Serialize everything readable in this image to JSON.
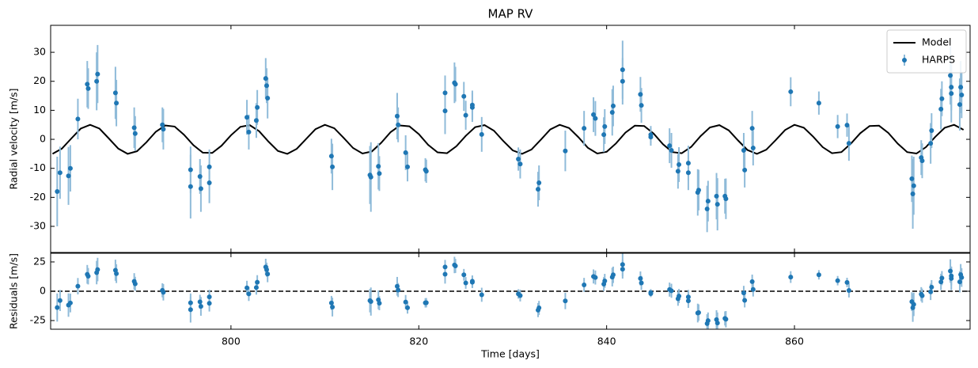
{
  "chart_data": [
    {
      "type": "errorbar",
      "title": "MAP RV",
      "ylabel": "Radial velocity [m/s]",
      "xlim": [
        780.8,
        878.7
      ],
      "ylim": [
        -39,
        39.3
      ],
      "xticks": [
        800,
        820,
        840,
        860
      ],
      "show_xtick_labels": false,
      "yticks": [
        -30,
        -20,
        -10,
        0,
        10,
        20,
        30
      ],
      "legend": "upper right",
      "series": [
        {
          "name": "Model",
          "color": "#000000",
          "x": [
            781,
            782,
            783,
            784,
            785,
            786,
            787,
            788,
            789,
            790,
            791,
            792,
            793,
            794,
            795,
            796,
            797,
            798,
            799,
            800,
            801,
            802,
            803,
            804,
            805,
            806,
            807,
            808,
            809,
            810,
            811,
            812,
            813,
            814,
            815,
            816,
            817,
            818,
            819,
            820,
            821,
            822,
            823,
            824,
            825,
            826,
            827,
            828,
            829,
            830,
            831,
            832,
            833,
            834,
            835,
            836,
            837,
            838,
            839,
            840,
            841,
            842,
            843,
            844,
            845,
            846,
            847,
            848,
            849,
            850,
            851,
            852,
            853,
            854,
            855,
            856,
            857,
            858,
            859,
            860,
            861,
            862,
            863,
            864,
            865,
            866,
            867,
            868,
            869,
            870,
            871,
            872,
            873,
            874,
            875,
            876,
            877,
            878
          ],
          "values": [
            -5.0,
            -3.2,
            0.3,
            3.7,
            5,
            3.7,
            0.3,
            -3.2,
            -5.0,
            -4.1,
            -1.0,
            2.6,
            4.8,
            4.4,
            1.6,
            -2.0,
            -4.6,
            -4.7,
            -2.2,
            1.4,
            4.3,
            4.9,
            2.8,
            -0.8,
            -4.0,
            -5.0,
            -3.3,
            0.1,
            3.5,
            5.0,
            3.8,
            0.5,
            -3.0,
            -4.9,
            -4.2,
            -1.2,
            2.5,
            4.8,
            4.5,
            1.8,
            -1.9,
            -4.5,
            -4.8,
            -2.4,
            1.2,
            4.2,
            4.9,
            3.0,
            -0.6,
            -3.8,
            -5.0,
            -3.5,
            -0.1,
            3.4,
            5.0,
            3.9,
            0.7,
            -2.9,
            -4.9,
            -4.3,
            -1.4,
            2.3,
            4.7,
            4.6,
            2.0,
            -1.7,
            -4.4,
            -4.8,
            -2.6,
            1.1,
            4.1,
            4.9,
            3.1,
            -0.4,
            -3.7,
            -5.0,
            -3.6,
            -0.3,
            3.2,
            5.0,
            4.0,
            0.9,
            -2.7,
            -4.8,
            -4.4,
            -1.5,
            2.1,
            4.6,
            4.7,
            2.2,
            -1.5,
            -4.4,
            -4.9,
            -2.7,
            0.9,
            4.0,
            5.0,
            3.3
          ]
        },
        {
          "name": "HARPS",
          "color": "#1f77b4",
          "error_color": "#8fbbd9",
          "x": [
            781.5,
            781.8,
            782.7,
            782.9,
            783.7,
            784.7,
            784.8,
            785.7,
            785.8,
            787.7,
            787.8,
            789.7,
            789.8,
            792.7,
            792.8,
            795.7,
            795.7,
            796.7,
            796.8,
            797.7,
            797.7,
            801.7,
            801.9,
            802.7,
            802.8,
            803.7,
            803.8,
            803.9,
            810.7,
            810.8,
            814.8,
            814.9,
            815.7,
            815.8,
            817.7,
            817.8,
            818.6,
            818.8,
            820.7,
            820.8,
            822.8,
            822.8,
            823.8,
            823.9,
            824.8,
            825.0,
            825.7,
            825.7,
            826.7,
            830.6,
            830.8,
            832.7,
            832.8,
            835.6,
            837.6,
            838.6,
            838.8,
            839.7,
            839.8,
            840.6,
            840.7,
            841.7,
            841.7,
            843.6,
            843.7,
            844.7,
            844.7,
            846.7,
            846.9,
            847.6,
            847.7,
            848.7,
            848.7,
            849.7,
            849.8,
            850.7,
            850.8,
            851.7,
            851.8,
            852.6,
            852.7,
            854.6,
            854.7,
            855.5,
            855.6,
            859.6,
            862.6,
            864.6,
            865.6,
            865.8,
            872.5,
            872.6,
            872.7,
            873.5,
            873.6,
            874.5,
            874.6,
            875.6,
            875.7,
            876.6,
            876.7,
            876.7,
            877.6,
            877.7,
            877.8
          ],
          "values": [
            -18,
            -11.5,
            -12.6,
            -10,
            7,
            19,
            17.5,
            20,
            22.5,
            16,
            12.5,
            4,
            2,
            5,
            3.5,
            -10.5,
            -16.3,
            -12.8,
            -17,
            -9.5,
            -15,
            7.6,
            2.5,
            6.5,
            11,
            21,
            18.5,
            14.2,
            -5.8,
            -9.5,
            -12.3,
            -13,
            -9.3,
            -11.8,
            8,
            5,
            -4.6,
            -9.5,
            -10.5,
            -11,
            16,
            9.8,
            19.5,
            19,
            14.8,
            8.3,
            11,
            11.8,
            1.7,
            -6.8,
            -8.5,
            -17.2,
            -15,
            -4,
            3.8,
            8.5,
            7.2,
            1.6,
            4.4,
            9.3,
            11.5,
            24,
            20,
            15.5,
            11.7,
            1.6,
            0.8,
            -2.2,
            -3.8,
            -11,
            -8.7,
            -8.2,
            -11.5,
            -18.3,
            -17.5,
            -24,
            -21.3,
            -19.6,
            -22.4,
            -19.6,
            -20.5,
            -3.8,
            -10.6,
            3.8,
            -3,
            16.4,
            12.5,
            4.4,
            4.9,
            -1.4,
            -13.6,
            -18.8,
            -16,
            -6.3,
            -7.4,
            -1.4,
            3,
            10.4,
            14,
            22,
            15.8,
            18,
            12,
            18,
            15.3
          ],
          "errors": [
            12,
            9,
            10,
            8,
            7,
            8,
            7,
            10,
            10,
            9,
            8,
            7,
            6,
            6,
            7,
            8,
            11,
            6,
            8,
            6,
            7,
            6,
            6,
            6,
            6,
            7,
            6,
            7,
            6,
            8,
            10,
            12,
            8,
            6,
            8,
            6,
            6,
            5,
            4,
            4,
            6,
            8,
            7,
            6,
            5,
            5,
            5,
            5,
            6,
            4,
            5,
            6,
            6,
            7,
            6,
            6,
            6,
            6,
            6,
            8,
            7,
            10,
            8,
            6,
            6,
            3,
            3,
            6,
            6,
            6,
            6,
            6,
            6,
            8,
            7,
            8,
            7,
            8,
            9,
            6,
            7,
            6,
            6,
            6,
            6,
            5,
            4,
            4,
            4,
            6,
            8,
            12,
            10,
            6,
            6,
            7,
            6,
            7,
            6,
            10,
            10,
            8,
            9,
            9,
            8
          ]
        }
      ]
    },
    {
      "type": "errorbar",
      "ylabel": "Residuals [m/s]",
      "xlabel": "Time [days]",
      "xlim": [
        780.8,
        878.7
      ],
      "ylim": [
        -32.4,
        32.4
      ],
      "xticks": [
        800,
        820,
        840,
        860
      ],
      "show_xtick_labels": true,
      "yticks": [
        -25,
        0,
        25
      ],
      "hline": 0,
      "series": [
        {
          "color": "#1f77b4",
          "error_color": "#8fbbd9",
          "x": [
            781.5,
            781.8,
            782.7,
            782.9,
            783.7,
            784.7,
            784.8,
            785.7,
            785.8,
            787.7,
            787.8,
            789.7,
            789.8,
            792.7,
            792.8,
            795.7,
            795.7,
            796.7,
            796.8,
            797.7,
            797.7,
            801.7,
            801.9,
            802.7,
            802.8,
            803.7,
            803.8,
            803.9,
            810.7,
            810.8,
            814.8,
            814.9,
            815.7,
            815.8,
            817.7,
            817.8,
            818.6,
            818.8,
            820.7,
            820.8,
            822.8,
            822.8,
            823.8,
            823.9,
            824.8,
            825.0,
            825.7,
            825.7,
            826.7,
            830.6,
            830.8,
            832.7,
            832.8,
            835.6,
            837.6,
            838.6,
            838.8,
            839.7,
            839.8,
            840.6,
            840.7,
            841.7,
            841.7,
            843.6,
            843.7,
            844.7,
            844.7,
            846.7,
            846.9,
            847.6,
            847.7,
            848.7,
            848.7,
            849.7,
            849.8,
            850.7,
            850.8,
            851.7,
            851.8,
            852.6,
            852.7,
            854.6,
            854.7,
            855.5,
            855.6,
            859.6,
            862.6,
            864.6,
            865.6,
            865.8,
            872.5,
            872.6,
            872.7,
            873.5,
            873.6,
            874.5,
            874.6,
            875.6,
            875.7,
            876.6,
            876.7,
            876.7,
            877.6,
            877.7,
            877.8
          ],
          "values": [
            -13.9,
            -7.9,
            -11.8,
            -10,
            4.3,
            14.4,
            12.8,
            15.9,
            18.5,
            17.9,
            15,
            8.4,
            6.3,
            0.8,
            -0.9,
            -9.9,
            -15.7,
            -9,
            -12.9,
            -4.8,
            -10.3,
            2.9,
            -2.3,
            3.1,
            7.7,
            20.7,
            18.4,
            14.7,
            -10,
            -13.5,
            -8,
            -8.8,
            -7.3,
            -10.2,
            4.2,
            1,
            -9.2,
            -14.1,
            -9.9,
            -9.8,
            20.7,
            14.5,
            22.4,
            21.6,
            14,
            7.1,
            7.7,
            8.5,
            -3,
            -2.3,
            -3.7,
            -16.1,
            -14.2,
            -8.3,
            5.4,
            12.6,
            11.7,
            6.1,
            8.8,
            12.1,
            14,
            22.8,
            18.8,
            10.9,
            7.1,
            -1.2,
            -2,
            1.4,
            0.4,
            -6.4,
            -4.1,
            -4.9,
            -8.2,
            -18.6,
            -18.2,
            -27.6,
            -25.1,
            -24.2,
            -27.1,
            -23.2,
            -23.9,
            -1.4,
            -7.8,
            8.2,
            1.5,
            12.1,
            14,
            9,
            7.5,
            0.7,
            -8.9,
            -14.1,
            -11.2,
            -2.5,
            -3.8,
            -0.5,
            3.5,
            7.9,
            11.2,
            17.2,
            10.9,
            13.1,
            8,
            14.2,
            11.7
          ],
          "errors": [
            12,
            9,
            10,
            8,
            7,
            8,
            7,
            10,
            10,
            9,
            8,
            7,
            6,
            6,
            7,
            8,
            11,
            6,
            8,
            6,
            7,
            6,
            6,
            6,
            6,
            7,
            6,
            7,
            6,
            8,
            10,
            12,
            8,
            6,
            8,
            6,
            6,
            5,
            4,
            4,
            6,
            8,
            7,
            6,
            5,
            5,
            5,
            5,
            6,
            4,
            5,
            6,
            6,
            7,
            6,
            6,
            6,
            6,
            6,
            8,
            7,
            10,
            8,
            6,
            6,
            3,
            3,
            6,
            6,
            6,
            6,
            6,
            6,
            8,
            7,
            8,
            7,
            8,
            9,
            6,
            7,
            6,
            6,
            6,
            6,
            5,
            4,
            4,
            4,
            6,
            8,
            12,
            10,
            6,
            6,
            7,
            6,
            7,
            6,
            10,
            10,
            8,
            9,
            9,
            8
          ]
        }
      ]
    }
  ]
}
